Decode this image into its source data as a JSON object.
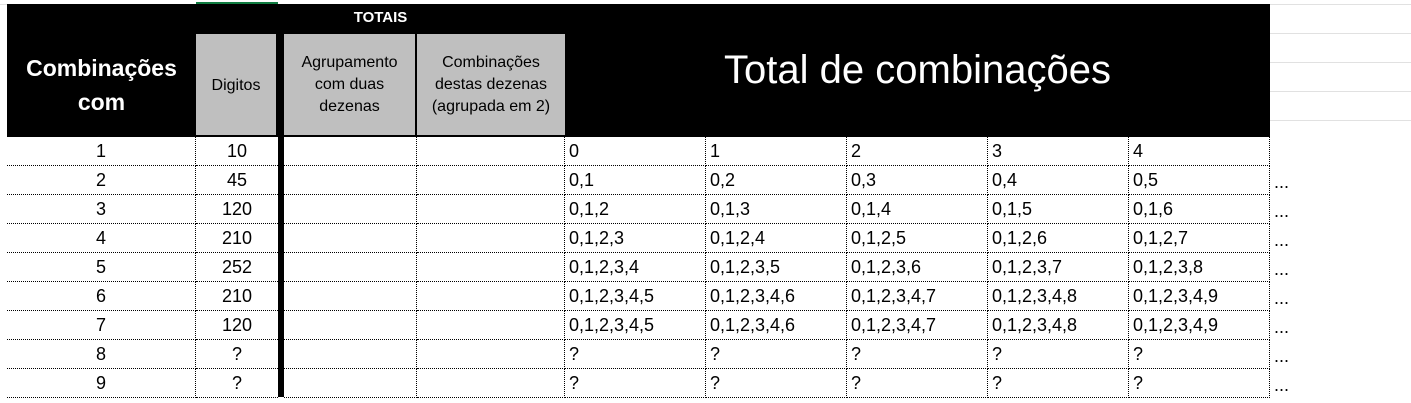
{
  "header": {
    "totais": "TOTAIS",
    "combinacoes_com": [
      "Combinações",
      "com"
    ],
    "digitos": "Digitos",
    "agrupamento": [
      "Agrupamento",
      "com duas",
      "dezenas"
    ],
    "combinacoes_destas": [
      "Combinações",
      "destas dezenas",
      "(agrupada em 2)"
    ],
    "total_combinacoes": "Total de combinações"
  },
  "rows": [
    {
      "n": "1",
      "digitos": "10",
      "cols": [
        "0",
        "1",
        "2",
        "3",
        "4"
      ],
      "more": ""
    },
    {
      "n": "2",
      "digitos": "45",
      "cols": [
        "0,1",
        "0,2",
        "0,3",
        "0,4",
        "0,5"
      ],
      "more": "..."
    },
    {
      "n": "3",
      "digitos": "120",
      "cols": [
        "0,1,2",
        "0,1,3",
        "0,1,4",
        "0,1,5",
        "0,1,6"
      ],
      "more": "..."
    },
    {
      "n": "4",
      "digitos": "210",
      "cols": [
        "0,1,2,3",
        "0,1,2,4",
        "0,1,2,5",
        "0,1,2,6",
        "0,1,2,7"
      ],
      "more": "..."
    },
    {
      "n": "5",
      "digitos": "252",
      "cols": [
        "0,1,2,3,4",
        "0,1,2,3,5",
        "0,1,2,3,6",
        "0,1,2,3,7",
        "0,1,2,3,8"
      ],
      "more": "..."
    },
    {
      "n": "6",
      "digitos": "210",
      "cols": [
        "0,1,2,3,4,5",
        "0,1,2,3,4,6",
        "0,1,2,3,4,7",
        "0,1,2,3,4,8",
        "0,1,2,3,4,9"
      ],
      "more": "..."
    },
    {
      "n": "7",
      "digitos": "120",
      "cols": [
        "0,1,2,3,4,5",
        "0,1,2,3,4,6",
        "0,1,2,3,4,7",
        "0,1,2,3,4,8",
        "0,1,2,3,4,9"
      ],
      "more": "..."
    },
    {
      "n": "8",
      "digitos": "?",
      "cols": [
        "?",
        "?",
        "?",
        "?",
        "?"
      ],
      "more": "..."
    },
    {
      "n": "9",
      "digitos": "?",
      "cols": [
        "?",
        "?",
        "?",
        "?",
        "?"
      ],
      "more": "..."
    }
  ]
}
